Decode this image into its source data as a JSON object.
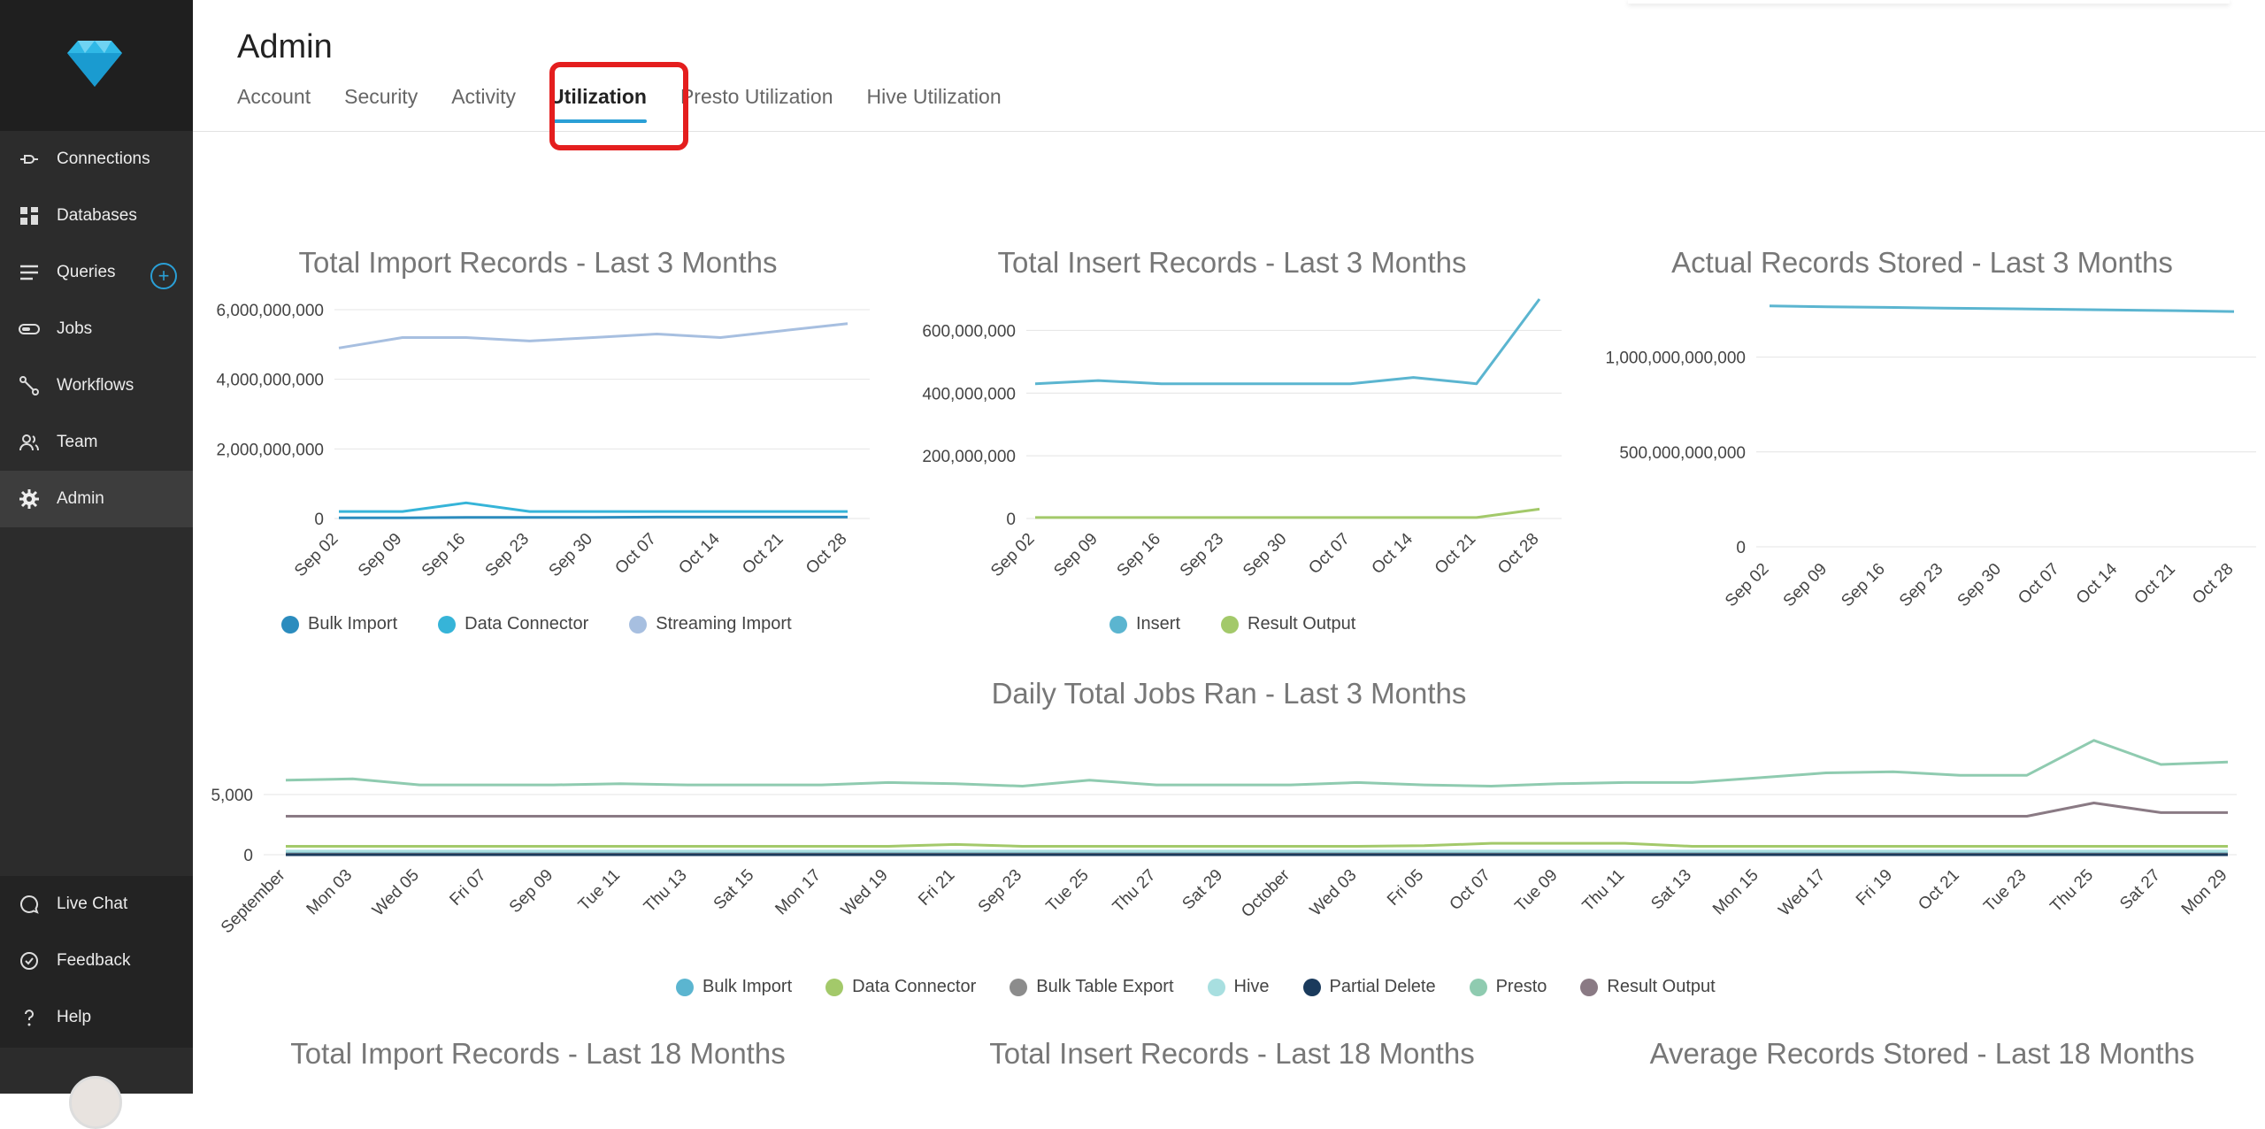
{
  "sidebar": {
    "items": [
      {
        "label": "Connections",
        "icon": "plug-icon"
      },
      {
        "label": "Databases",
        "icon": "grid-icon"
      },
      {
        "label": "Queries",
        "icon": "list-icon"
      },
      {
        "label": "Jobs",
        "icon": "toggle-icon"
      },
      {
        "label": "Workflows",
        "icon": "workflow-icon"
      },
      {
        "label": "Team",
        "icon": "team-icon"
      },
      {
        "label": "Admin",
        "icon": "gear-icon"
      }
    ],
    "bottom_items": [
      {
        "label": "Live Chat",
        "icon": "chat-icon"
      },
      {
        "label": "Feedback",
        "icon": "feedback-icon"
      },
      {
        "label": "Help",
        "icon": "help-icon"
      }
    ],
    "add_symbol": "+"
  },
  "header": {
    "title": "Admin",
    "tabs": [
      "Account",
      "Security",
      "Activity",
      "Utilization",
      "Presto Utilization",
      "Hive Utilization"
    ],
    "active_tab": "Utilization"
  },
  "colors": {
    "accent": "#2a9fd6",
    "highlight": "#e41e1e",
    "bulk_import": "#2b8cbe",
    "data_connector": "#36b4d8",
    "streaming_import": "#a7bfe0",
    "insert": "#5bb5d0",
    "result_output_green": "#a3c96a",
    "bulk_import_jobs": "#5bb5d0",
    "data_connector_jobs": "#a3c96a",
    "bulk_table_export": "#8c8c8c",
    "hive": "#a8dfe0",
    "partial_delete": "#1a3a5c",
    "presto": "#8fcbb0",
    "result_output_jobs": "#8a7a84"
  },
  "chart_data": [
    {
      "type": "line",
      "title": "Total Import Records - Last 3 Months",
      "categories": [
        "Sep 02",
        "Sep 09",
        "Sep 16",
        "Sep 23",
        "Sep 30",
        "Oct 07",
        "Oct 14",
        "Oct 21",
        "Oct 28"
      ],
      "ylim": [
        0,
        6000000000
      ],
      "yticks": [
        "0",
        "2,000,000,000",
        "4,000,000,000",
        "6,000,000,000"
      ],
      "series": [
        {
          "name": "Bulk Import",
          "values": [
            20000000,
            20000000,
            30000000,
            30000000,
            30000000,
            40000000,
            40000000,
            40000000,
            40000000
          ]
        },
        {
          "name": "Data Connector",
          "values": [
            200000000,
            200000000,
            450000000,
            200000000,
            200000000,
            200000000,
            200000000,
            200000000,
            200000000
          ]
        },
        {
          "name": "Streaming Import",
          "values": [
            4900000000,
            5200000000,
            5200000000,
            5100000000,
            5200000000,
            5300000000,
            5200000000,
            5400000000,
            5600000000
          ]
        }
      ]
    },
    {
      "type": "line",
      "title": "Total Insert Records - Last 3 Months",
      "categories": [
        "Sep 02",
        "Sep 09",
        "Sep 16",
        "Sep 23",
        "Sep 30",
        "Oct 07",
        "Oct 14",
        "Oct 21",
        "Oct 28"
      ],
      "ylim": [
        0,
        700000000
      ],
      "yticks": [
        "0",
        "200,000,000",
        "400,000,000",
        "600,000,000"
      ],
      "series": [
        {
          "name": "Insert",
          "values": [
            430000000,
            440000000,
            430000000,
            430000000,
            430000000,
            430000000,
            450000000,
            430000000,
            700000000
          ]
        },
        {
          "name": "Result Output",
          "values": [
            3000000,
            3000000,
            3000000,
            3000000,
            3000000,
            3000000,
            3000000,
            3000000,
            30000000
          ]
        }
      ]
    },
    {
      "type": "line",
      "title": "Actual Records Stored - Last 3 Months",
      "categories": [
        "Sep 02",
        "Sep 09",
        "Sep 16",
        "Sep 23",
        "Sep 30",
        "Oct 07",
        "Oct 14",
        "Oct 21",
        "Oct 28"
      ],
      "ylim": [
        0,
        1250000000000
      ],
      "yticks": [
        "0",
        "500,000,000,000",
        "1,000,000,000,000"
      ],
      "series": [
        {
          "name": "",
          "values": [
            1270000000000,
            1265000000000,
            1262000000000,
            1258000000000,
            1255000000000,
            1252000000000,
            1248000000000,
            1245000000000,
            1240000000000
          ]
        }
      ]
    },
    {
      "type": "line",
      "title": "Daily Total Jobs Ran - Last 3 Months",
      "categories": [
        "September",
        "Mon 03",
        "Wed 05",
        "Fri 07",
        "Sep 09",
        "Tue 11",
        "Thu 13",
        "Sat 15",
        "Mon 17",
        "Wed 19",
        "Fri 21",
        "Sep 23",
        "Tue 25",
        "Thu 27",
        "Sat 29",
        "October",
        "Wed 03",
        "Fri 05",
        "Oct 07",
        "Tue 09",
        "Thu 11",
        "Sat 13",
        "Mon 15",
        "Wed 17",
        "Fri 19",
        "Oct 21",
        "Tue 23",
        "Thu 25",
        "Sat 27",
        "Mon 29"
      ],
      "ylim": [
        0,
        10000
      ],
      "yticks": [
        "0",
        "5,000"
      ],
      "series": [
        {
          "name": "Bulk Import",
          "values": [
            150,
            150,
            150,
            150,
            150,
            150,
            150,
            150,
            150,
            150,
            150,
            150,
            150,
            150,
            150,
            150,
            150,
            150,
            150,
            150,
            150,
            150,
            150,
            150,
            150,
            150,
            150,
            150,
            150,
            150
          ]
        },
        {
          "name": "Data Connector",
          "values": [
            700,
            700,
            700,
            700,
            700,
            700,
            700,
            700,
            700,
            700,
            850,
            700,
            700,
            700,
            700,
            700,
            700,
            750,
            950,
            950,
            950,
            700,
            700,
            700,
            700,
            700,
            700,
            700,
            700,
            700
          ]
        },
        {
          "name": "Bulk Table Export",
          "values": [
            50,
            50,
            50,
            50,
            50,
            50,
            50,
            50,
            50,
            50,
            50,
            50,
            50,
            50,
            50,
            50,
            50,
            50,
            50,
            50,
            50,
            50,
            50,
            50,
            50,
            50,
            50,
            50,
            50,
            50
          ]
        },
        {
          "name": "Hive",
          "values": [
            300,
            300,
            300,
            300,
            300,
            300,
            300,
            300,
            300,
            300,
            300,
            300,
            300,
            300,
            300,
            300,
            300,
            300,
            300,
            300,
            300,
            300,
            300,
            300,
            300,
            300,
            300,
            300,
            300,
            300
          ]
        },
        {
          "name": "Partial Delete",
          "values": [
            0,
            0,
            0,
            0,
            0,
            0,
            0,
            0,
            0,
            0,
            0,
            0,
            0,
            0,
            0,
            0,
            0,
            0,
            0,
            0,
            0,
            0,
            0,
            0,
            0,
            0,
            0,
            0,
            0,
            0
          ]
        },
        {
          "name": "Presto",
          "values": [
            6200,
            6300,
            5800,
            5800,
            5800,
            5900,
            5800,
            5800,
            5800,
            6000,
            5900,
            5700,
            6200,
            5800,
            5800,
            5800,
            6000,
            5800,
            5700,
            5900,
            6000,
            6000,
            6400,
            6800,
            6900,
            6600,
            6600,
            9500,
            7500,
            7700
          ]
        },
        {
          "name": "Result Output",
          "values": [
            3200,
            3200,
            3200,
            3200,
            3200,
            3200,
            3200,
            3200,
            3200,
            3200,
            3200,
            3200,
            3200,
            3200,
            3200,
            3200,
            3200,
            3200,
            3200,
            3200,
            3200,
            3200,
            3200,
            3200,
            3200,
            3200,
            3200,
            4300,
            3500,
            3500
          ]
        }
      ]
    }
  ],
  "charts_18m": {
    "titles": [
      "Total Import Records - Last 18 Months",
      "Total Insert Records - Last 18 Months",
      "Average Records Stored - Last 18 Months"
    ]
  }
}
